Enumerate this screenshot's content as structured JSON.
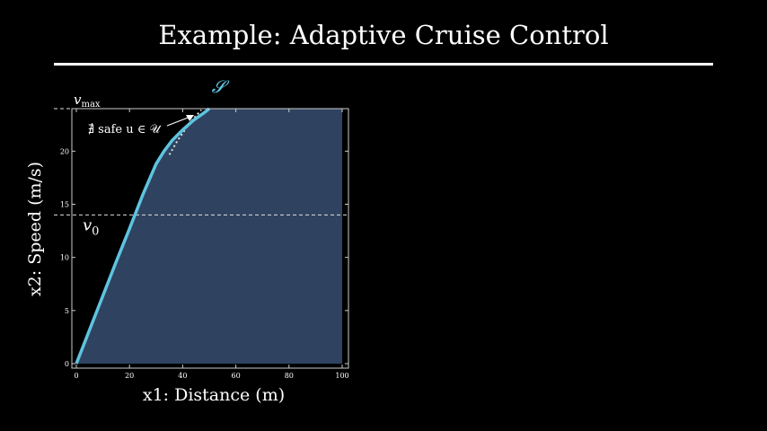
{
  "slide": {
    "title": "Example: Adaptive Cruise Control"
  },
  "chart_data": {
    "type": "area",
    "title": "",
    "xlabel": "x1: Distance (m)",
    "ylabel": "x2: Speed (m/s)",
    "xlim": [
      0,
      100
    ],
    "ylim": [
      0,
      24
    ],
    "x_ticks": [
      0,
      20,
      40,
      60,
      80,
      100
    ],
    "y_ticks": [
      0,
      5,
      10,
      15,
      20
    ],
    "grid": false,
    "colors": {
      "region_fill": "#2f4360",
      "boundary": "#5ec4e0",
      "frame": "#cccccc"
    },
    "series": [
      {
        "name": "S",
        "x": [
          0,
          5,
          10,
          15,
          20,
          25,
          30,
          33,
          36,
          40,
          44,
          48,
          50,
          100
        ],
        "values": [
          0,
          3.2,
          6.4,
          9.6,
          12.7,
          15.9,
          18.8,
          20.0,
          21.0,
          22.0,
          22.9,
          23.6,
          24,
          24
        ]
      }
    ],
    "reference_lines": [
      {
        "axis": "y",
        "value": 24,
        "label": "v",
        "label_sub": "max"
      },
      {
        "axis": "y",
        "value": 14,
        "label": "v",
        "label_sub": "0"
      }
    ],
    "no_safe_control_curve": {
      "x": [
        34,
        37,
        40,
        43,
        46
      ],
      "values": [
        19.5,
        20.8,
        21.9,
        22.9,
        23.7
      ]
    },
    "annotations": [
      {
        "text": "∄ safe u ∈ 𝒰",
        "target": [
          45,
          23.5
        ]
      },
      {
        "text": "𝓢",
        "target": [
          50,
          24
        ]
      }
    ]
  }
}
